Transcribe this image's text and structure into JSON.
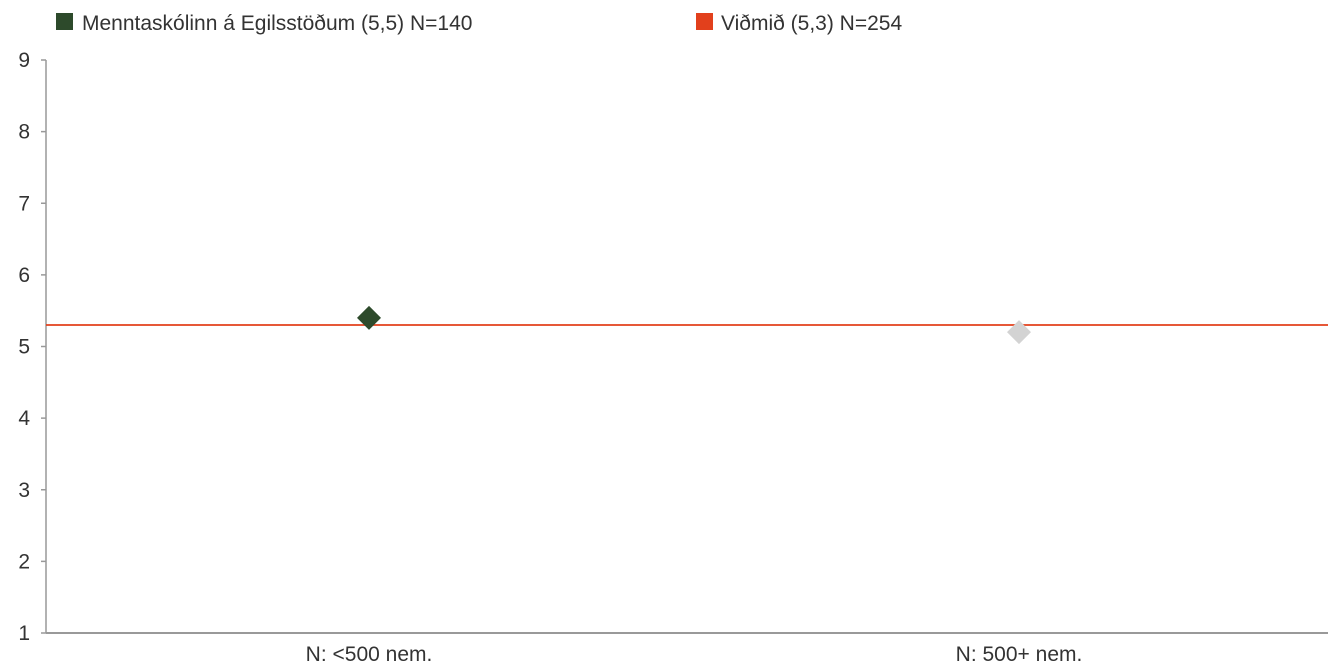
{
  "chart_data": {
    "type": "scatter",
    "title": "",
    "xlabel": "",
    "ylabel": "",
    "categories": [
      "N: <500 nem.",
      "N: 500+ nem."
    ],
    "ylim": [
      1,
      9
    ],
    "yticks": [
      1,
      2,
      3,
      4,
      5,
      6,
      7,
      8,
      9
    ],
    "grid": false,
    "legend_position": "top-left",
    "legend": [
      {
        "label": "Menntaskólinn á Egilsstöðum (5,5) N=140",
        "color": "#2d4a2b",
        "shape": "square"
      },
      {
        "label": "Viðmið (5,3) N=254",
        "color": "#e2401c",
        "shape": "square"
      }
    ],
    "points": [
      {
        "category": "N: <500 nem.",
        "value": 5.4,
        "color": "#2d4a2b",
        "marker": "diamond"
      },
      {
        "category": "N: 500+ nem.",
        "value": 5.2,
        "color": "#d3d3d3",
        "marker": "diamond"
      }
    ],
    "reference_line": {
      "value": 5.3,
      "color": "#e2401c"
    },
    "axis_color": "#999999"
  }
}
